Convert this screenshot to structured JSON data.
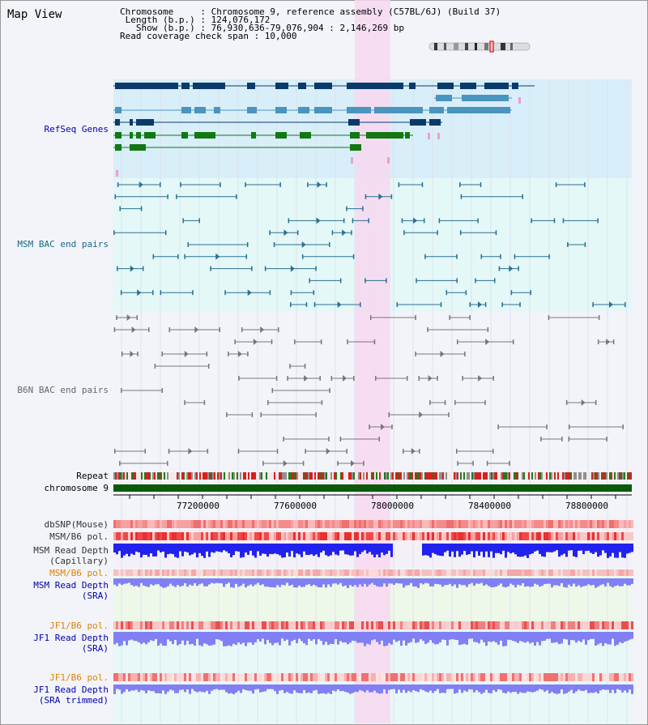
{
  "header": {
    "title": "Map View",
    "info_lines": [
      "Chromosome     : Chromosome 9, reference assembly (C57BL/6J) (Build 37)",
      " Length (b.p.) : 124,076,172",
      "   Show (b.p.) : 76,930,636-79,076,904 : 2,146,269 bp",
      "Read coverage check span : 10,000"
    ]
  },
  "track_labels": {
    "refseq": "RefSeq Genes",
    "msm_bac": "MSM BAC end pairs",
    "b6n_bac": "B6N BAC end pairs",
    "repeat": "Repeat",
    "chromosome": "chromosome 9",
    "dbsnp": "dbSNP(Mouse)",
    "msm_b6_pol": "MSM/B6 pol.",
    "msm_depth_cap_1": "MSM Read Depth",
    "msm_depth_cap_2": "(Capillary)",
    "msm_b6_pol_2": "MSM/B6 pol.",
    "msm_depth_sra_1": "MSM Read Depth",
    "msm_depth_sra_2": "(SRA)",
    "jf1_b6_pol": "JF1/B6 pol.",
    "jf1_depth_sra_1": "JF1 Read Depth",
    "jf1_depth_sra_2": "(SRA)",
    "jf1_b6_pol_2": "JF1/B6 pol.",
    "jf1_depth_trim_1": "JF1 Read Depth",
    "jf1_depth_trim_2": "(SRA trimmed)"
  },
  "axis": {
    "ticks": [
      "77200000",
      "77600000",
      "78000000",
      "78400000",
      "78800000"
    ]
  },
  "colors": {
    "highlight": "#f8d8f0",
    "refseq_bg": "#d8eef8",
    "bac_bg": "#e4f8f8",
    "refseq_dark": "#0a3a6a",
    "refseq_mid": "#4a94c0",
    "refseq_green": "#127812",
    "msm_bac": "#2a7090",
    "b6n_bac": "#777777",
    "chromosome_bar": "#0a5a0a",
    "depth_dark": "#2222ee",
    "depth_light": "#8080f4"
  }
}
